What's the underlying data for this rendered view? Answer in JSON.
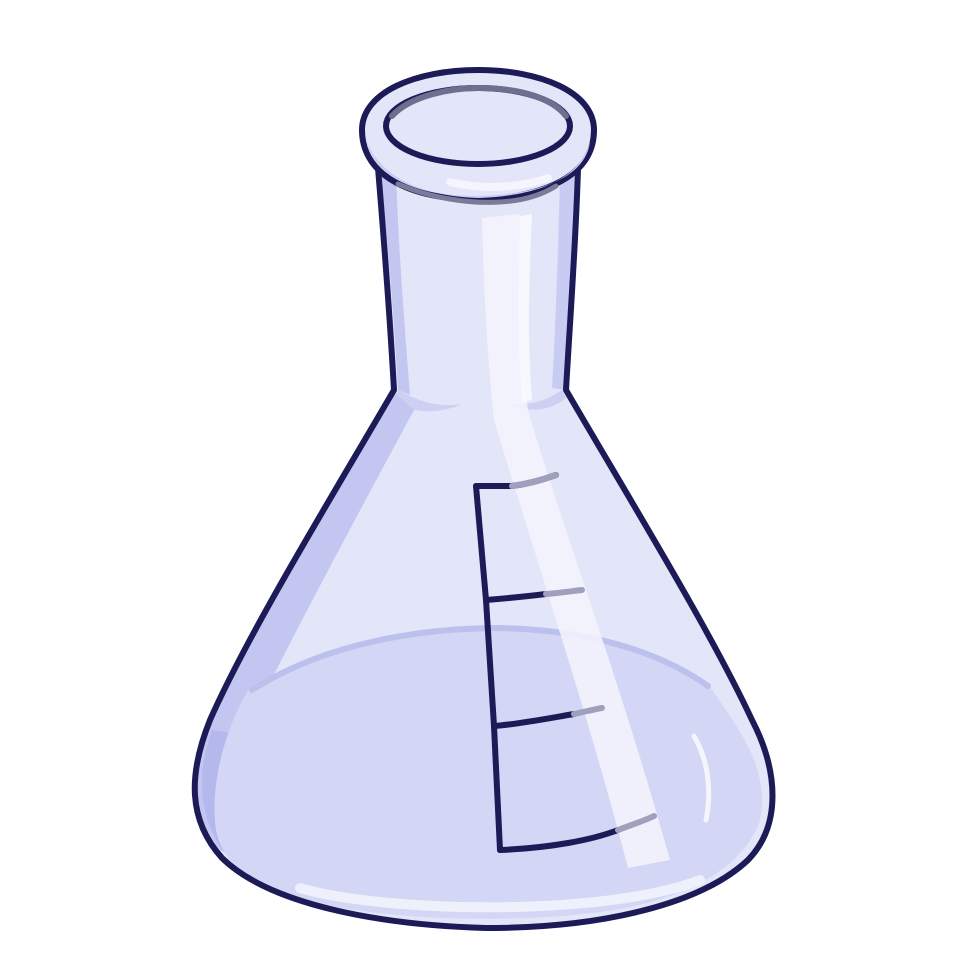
{
  "illustration": {
    "subject": "flask-icon",
    "colors": {
      "background": "#ffffff",
      "outline": "#1c1b57",
      "glass": "#e3e5f8",
      "glass_shadow": "#c3c6f0",
      "glass_side_shade": "#b4b8ec",
      "liquid": "#d3d6f4",
      "highlight": "#f4f5fd",
      "rim_inner": "#6e6f8f",
      "tick_fade": "#9ea0bd"
    },
    "liquid_level_fraction": 0.55,
    "graduation_mark_count": 4
  }
}
